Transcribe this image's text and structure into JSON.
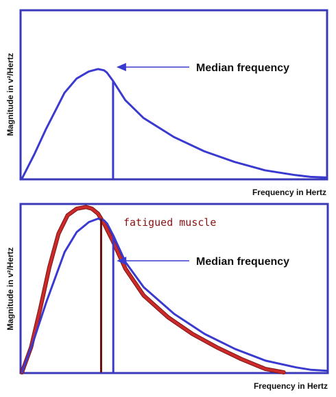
{
  "colors": {
    "frame": "#3a3ab8",
    "normal_curve": "#3a3ad0",
    "fatigued_curve": "#cc2a2a",
    "fatigued_outline": "#7a1515",
    "fatigued_median": "#6a0f0f",
    "fatigued_text": "#8a1010"
  },
  "chart_data": [
    {
      "type": "line",
      "xlabel": "Frequency in Hertz",
      "ylabel": "Magnitude in v²/Hertz",
      "grid": false,
      "series": [
        {
          "key": "normal",
          "x": [
            0,
            4,
            8,
            12,
            14,
            18,
            22,
            25,
            27,
            28,
            30,
            34,
            40,
            50,
            60,
            70,
            80,
            90,
            95,
            100
          ],
          "values": [
            0,
            20,
            42,
            62,
            72,
            84,
            90,
            92,
            91,
            89,
            82,
            66,
            51,
            35,
            23,
            14,
            7,
            3,
            1.5,
            1
          ]
        }
      ],
      "markers": [
        {
          "key": "median",
          "x": 30,
          "label": "Median frequency"
        }
      ]
    },
    {
      "type": "line",
      "xlabel": "Frequency in Hertz",
      "ylabel": "Magnitude in v²/Hertz",
      "grid": false,
      "series": [
        {
          "key": "normal",
          "x": [
            0,
            4,
            8,
            12,
            14,
            18,
            22,
            25,
            27,
            28,
            30,
            34,
            40,
            50,
            60,
            70,
            80,
            90,
            95,
            100
          ],
          "values": [
            0,
            20,
            42,
            62,
            72,
            84,
            90,
            92,
            91,
            89,
            82,
            66,
            51,
            35,
            23,
            14,
            7,
            3,
            1.5,
            1
          ]
        },
        {
          "key": "fatigued",
          "x": [
            0,
            3,
            6,
            9,
            12,
            15,
            18,
            21,
            23,
            25,
            27,
            30,
            34,
            40,
            48,
            56,
            64,
            72,
            80,
            86
          ],
          "values": [
            0,
            15,
            38,
            63,
            83,
            94,
            98,
            99,
            98,
            95,
            89,
            78,
            62,
            46,
            33,
            23,
            15,
            8,
            2,
            0
          ]
        }
      ],
      "markers": [
        {
          "key": "fatigued_median",
          "x": 26,
          "label": "fatigued muscle"
        },
        {
          "key": "median",
          "x": 30,
          "label": "Median frequency"
        }
      ]
    }
  ]
}
